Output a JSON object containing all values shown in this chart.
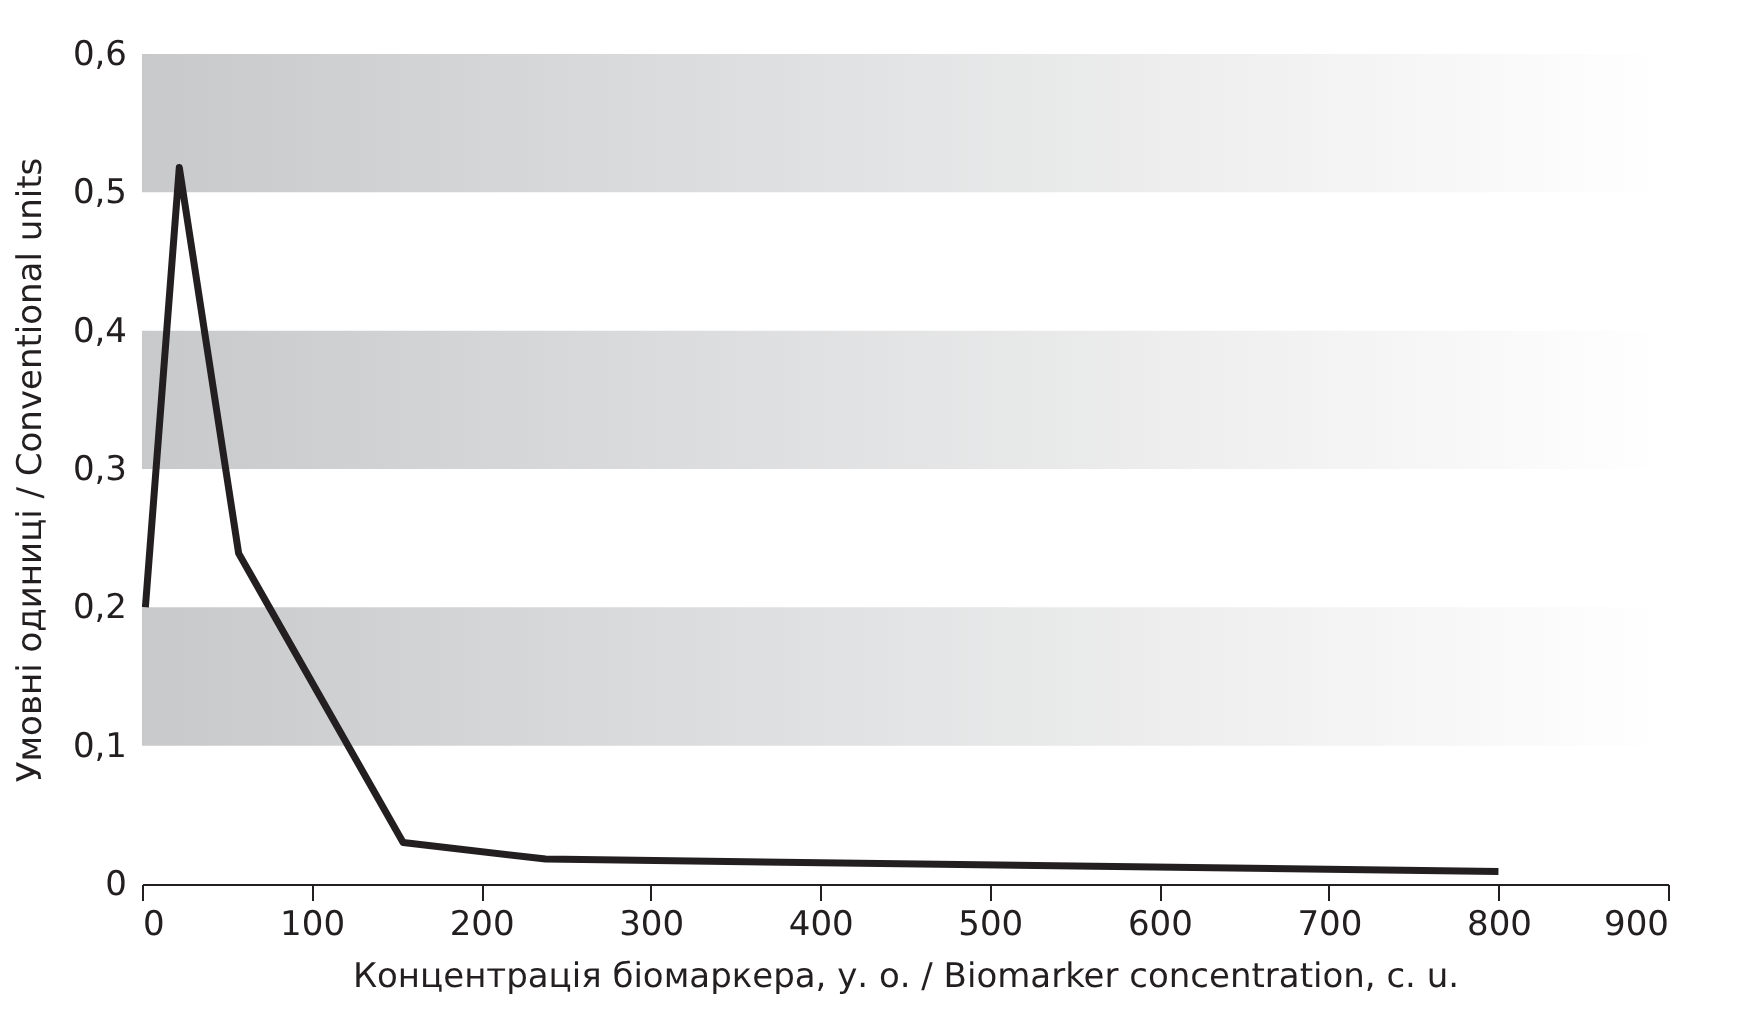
{
  "chart_data": {
    "type": "line",
    "xlabel": "Концентрація біомаркера, у. о. / Biomarker concentration, c. u.",
    "ylabel": "Умовні одиниці / Conventional units",
    "series": [
      {
        "color": "#231f20",
        "x": [
          2,
          22,
          57,
          154,
          238,
          800
        ],
        "values": [
          0.2,
          0.518,
          0.239,
          0.03,
          0.018,
          0.009
        ]
      }
    ],
    "xlim": [
      0,
      900
    ],
    "xticks": [
      0,
      100,
      200,
      300,
      400,
      500,
      600,
      700,
      800,
      900
    ],
    "ylim": [
      0,
      0.6
    ],
    "yticks": [
      0,
      {
        "value": 0.1,
        "label": "0,1"
      },
      {
        "value": 0.2,
        "label": "0,2"
      },
      {
        "value": 0.3,
        "label": "0,3"
      },
      {
        "value": 0.4,
        "label": "0,4"
      },
      {
        "value": 0.5,
        "label": "0,5"
      },
      {
        "value": 0.6,
        "label": "0,6"
      }
    ],
    "bands": [
      {
        "axis": "y",
        "from": 0.1,
        "to": 0.2,
        "color": "#c8c9cb"
      },
      {
        "axis": "y",
        "from": 0.3,
        "to": 0.4,
        "color": "#c8c9cb"
      },
      {
        "axis": "y",
        "from": 0.5,
        "to": 0.6,
        "color": "#c8c9cb"
      }
    ],
    "marker": "none",
    "line_style": "solid"
  }
}
